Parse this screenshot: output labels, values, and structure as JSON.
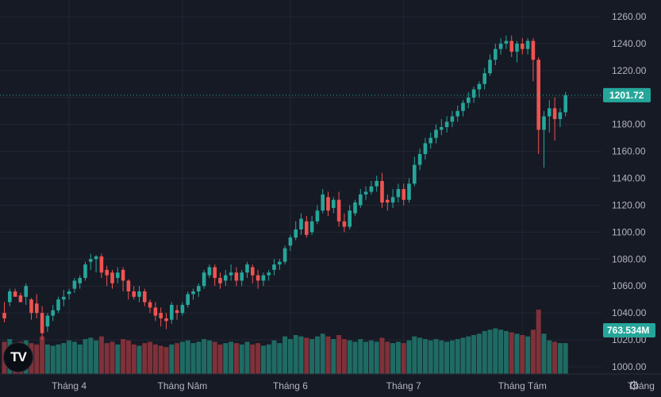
{
  "logo": {
    "text": "TV"
  },
  "icons": {
    "logo": "tradingview-logo-icon",
    "settings": "gear-icon"
  },
  "colors": {
    "background": "#161a25",
    "grid": "#232734",
    "up": "#26a69a",
    "down": "#ef5350",
    "volume_up": "#1f6b63",
    "volume_down": "#7f3139",
    "price_line": "#26a69a",
    "axis_text": "#b2b5be"
  },
  "chart_data": {
    "type": "candlestick",
    "y_ticks": [
      "1260.00",
      "1240.00",
      "1220.00",
      "1200.00",
      "1180.00",
      "1160.00",
      "1140.00",
      "1120.00",
      "1100.00",
      "1080.00",
      "1060.00",
      "1040.00",
      "1020.00",
      "1000.00"
    ],
    "y_tick_values": [
      1260,
      1240,
      1220,
      1200,
      1180,
      1160,
      1140,
      1120,
      1100,
      1080,
      1060,
      1040,
      1020,
      1000
    ],
    "ylim": [
      995,
      1268
    ],
    "x_ticks": [
      {
        "label": "Tháng 4",
        "index": 12
      },
      {
        "label": "Tháng Năm",
        "index": 33
      },
      {
        "label": "Tháng 6",
        "index": 53
      },
      {
        "label": "Tháng 7",
        "index": 74
      },
      {
        "label": "Tháng Tám",
        "index": 96
      },
      {
        "label": "Tháng",
        "index": 118
      }
    ],
    "last_price": {
      "value": 1201.72,
      "label": "1201.72"
    },
    "last_volume": {
      "label": "763.534M"
    },
    "volume_scale_max": 1000,
    "candles": [
      [
        1040,
        1048,
        1036,
        1033,
        120
      ],
      [
        1048,
        1058,
        1056,
        1045,
        130
      ],
      [
        1056,
        1058,
        1052,
        1054,
        110
      ],
      [
        1053,
        1055,
        1048,
        1052,
        120
      ],
      [
        1052,
        1062,
        1060,
        1046,
        125
      ],
      [
        1050,
        1051,
        1040,
        1035,
        115
      ],
      [
        1047,
        1054,
        1040,
        1036,
        110
      ],
      [
        1040,
        1045,
        1025,
        1020,
        140
      ],
      [
        1030,
        1040,
        1038,
        1026,
        110
      ],
      [
        1038,
        1046,
        1042,
        1034,
        105
      ],
      [
        1042,
        1052,
        1050,
        1040,
        110
      ],
      [
        1050,
        1057,
        1052,
        1045,
        115
      ],
      [
        1054,
        1058,
        1056,
        1050,
        125
      ],
      [
        1058,
        1066,
        1064,
        1055,
        120
      ],
      [
        1062,
        1068,
        1066,
        1058,
        110
      ],
      [
        1066,
        1078,
        1076,
        1064,
        130
      ],
      [
        1078,
        1084,
        1080,
        1072,
        135
      ],
      [
        1080,
        1083,
        1082,
        1070,
        125
      ],
      [
        1082,
        1084,
        1070,
        1066,
        140
      ],
      [
        1072,
        1075,
        1068,
        1060,
        115
      ],
      [
        1070,
        1072,
        1062,
        1058,
        120
      ],
      [
        1066,
        1074,
        1070,
        1062,
        110
      ],
      [
        1072,
        1074,
        1064,
        1056,
        130
      ],
      [
        1064,
        1065,
        1056,
        1050,
        125
      ],
      [
        1056,
        1060,
        1052,
        1050,
        110
      ],
      [
        1052,
        1060,
        1056,
        1048,
        105
      ],
      [
        1056,
        1058,
        1048,
        1045,
        115
      ],
      [
        1048,
        1050,
        1044,
        1040,
        120
      ],
      [
        1044,
        1048,
        1038,
        1034,
        110
      ],
      [
        1040,
        1044,
        1036,
        1030,
        105
      ],
      [
        1036,
        1040,
        1034,
        1028,
        100
      ],
      [
        1035,
        1048,
        1046,
        1032,
        110
      ],
      [
        1042,
        1046,
        1040,
        1035,
        115
      ],
      [
        1040,
        1048,
        1046,
        1038,
        120
      ],
      [
        1046,
        1056,
        1054,
        1044,
        125
      ],
      [
        1054,
        1058,
        1056,
        1050,
        115
      ],
      [
        1056,
        1062,
        1060,
        1052,
        120
      ],
      [
        1060,
        1072,
        1070,
        1058,
        130
      ],
      [
        1068,
        1076,
        1074,
        1066,
        125
      ],
      [
        1074,
        1076,
        1066,
        1060,
        120
      ],
      [
        1066,
        1070,
        1062,
        1058,
        110
      ],
      [
        1064,
        1072,
        1068,
        1060,
        115
      ],
      [
        1068,
        1076,
        1070,
        1064,
        120
      ],
      [
        1070,
        1074,
        1064,
        1060,
        115
      ],
      [
        1064,
        1072,
        1070,
        1060,
        110
      ],
      [
        1070,
        1078,
        1076,
        1066,
        120
      ],
      [
        1074,
        1076,
        1068,
        1062,
        110
      ],
      [
        1068,
        1072,
        1064,
        1058,
        115
      ],
      [
        1064,
        1070,
        1068,
        1060,
        105
      ],
      [
        1068,
        1072,
        1070,
        1064,
        110
      ],
      [
        1072,
        1080,
        1076,
        1068,
        125
      ],
      [
        1076,
        1080,
        1078,
        1072,
        115
      ],
      [
        1078,
        1090,
        1088,
        1076,
        140
      ],
      [
        1090,
        1098,
        1096,
        1086,
        130
      ],
      [
        1096,
        1108,
        1102,
        1094,
        145
      ],
      [
        1102,
        1114,
        1110,
        1098,
        140
      ],
      [
        1108,
        1112,
        1098,
        1096,
        135
      ],
      [
        1100,
        1112,
        1108,
        1098,
        130
      ],
      [
        1108,
        1120,
        1116,
        1106,
        140
      ],
      [
        1116,
        1132,
        1128,
        1114,
        150
      ],
      [
        1126,
        1130,
        1116,
        1112,
        140
      ],
      [
        1118,
        1126,
        1124,
        1114,
        130
      ],
      [
        1124,
        1130,
        1108,
        1104,
        145
      ],
      [
        1108,
        1114,
        1104,
        1100,
        130
      ],
      [
        1104,
        1120,
        1116,
        1102,
        125
      ],
      [
        1114,
        1124,
        1122,
        1112,
        120
      ],
      [
        1120,
        1132,
        1128,
        1118,
        130
      ],
      [
        1128,
        1134,
        1130,
        1124,
        120
      ],
      [
        1130,
        1138,
        1134,
        1128,
        125
      ],
      [
        1134,
        1142,
        1138,
        1130,
        120
      ],
      [
        1138,
        1144,
        1122,
        1118,
        135
      ],
      [
        1124,
        1128,
        1122,
        1116,
        120
      ],
      [
        1122,
        1132,
        1126,
        1118,
        115
      ],
      [
        1126,
        1136,
        1132,
        1122,
        120
      ],
      [
        1132,
        1136,
        1124,
        1120,
        115
      ],
      [
        1124,
        1140,
        1136,
        1122,
        125
      ],
      [
        1136,
        1156,
        1150,
        1134,
        140
      ],
      [
        1150,
        1162,
        1158,
        1146,
        135
      ],
      [
        1158,
        1170,
        1166,
        1154,
        130
      ],
      [
        1166,
        1174,
        1170,
        1162,
        125
      ],
      [
        1170,
        1180,
        1176,
        1166,
        130
      ],
      [
        1176,
        1184,
        1178,
        1172,
        125
      ],
      [
        1178,
        1186,
        1182,
        1174,
        120
      ],
      [
        1182,
        1190,
        1186,
        1178,
        125
      ],
      [
        1186,
        1194,
        1190,
        1182,
        130
      ],
      [
        1190,
        1198,
        1196,
        1186,
        135
      ],
      [
        1196,
        1204,
        1200,
        1192,
        140
      ],
      [
        1200,
        1208,
        1206,
        1196,
        145
      ],
      [
        1206,
        1212,
        1210,
        1200,
        150
      ],
      [
        1210,
        1222,
        1218,
        1206,
        160
      ],
      [
        1218,
        1232,
        1228,
        1216,
        165
      ],
      [
        1228,
        1240,
        1236,
        1224,
        170
      ],
      [
        1236,
        1244,
        1240,
        1232,
        165
      ],
      [
        1240,
        1246,
        1242,
        1236,
        160
      ],
      [
        1242,
        1246,
        1234,
        1230,
        155
      ],
      [
        1234,
        1242,
        1240,
        1226,
        150
      ],
      [
        1240,
        1244,
        1236,
        1232,
        145
      ],
      [
        1236,
        1244,
        1242,
        1232,
        140
      ],
      [
        1242,
        1244,
        1228,
        1212,
        165
      ],
      [
        1228,
        1230,
        1176,
        1158,
        240
      ],
      [
        1176,
        1190,
        1186,
        1148,
        150
      ],
      [
        1186,
        1198,
        1192,
        1174,
        125
      ],
      [
        1192,
        1200,
        1184,
        1168,
        120
      ],
      [
        1184,
        1192,
        1189,
        1178,
        115
      ],
      [
        1189,
        1204,
        1201.72,
        1186,
        115
      ]
    ]
  }
}
